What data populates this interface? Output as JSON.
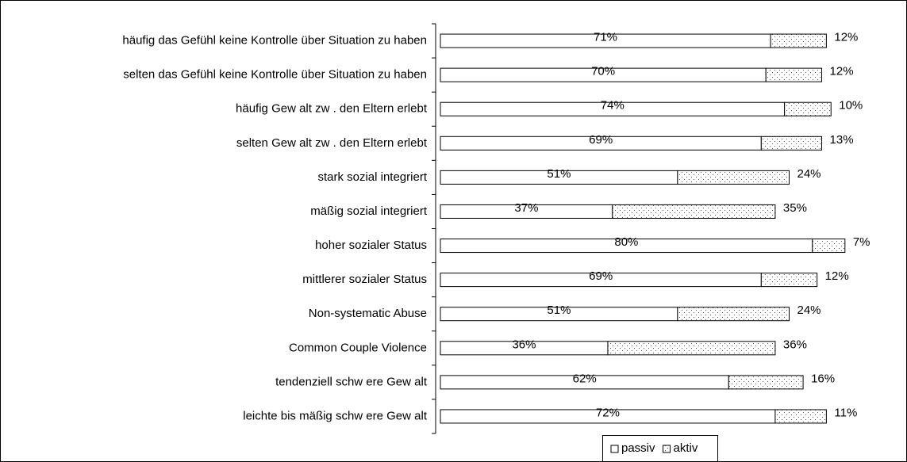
{
  "chart_data": {
    "type": "stacked-bar-horizontal",
    "categories": [
      "häufig das Gefühl keine Kontrolle über Situation zu haben",
      "selten das Gefühl keine Kontrolle über Situation zu haben",
      "häufig Gew alt zw . den Eltern erlebt",
      "selten Gew alt zw . den Eltern erlebt",
      "stark sozial integriert",
      "mäßig sozial integriert",
      "hoher sozialer Status",
      "mittlerer sozialer Status",
      "Non-systematic Abuse",
      "Common Couple Violence",
      "tendenziell schw ere Gew alt",
      "leichte bis mäßig schw ere Gew alt"
    ],
    "series": [
      {
        "name": "passiv",
        "color": "#ffffff",
        "pattern": "none",
        "values": [
          71,
          70,
          74,
          69,
          51,
          37,
          80,
          69,
          51,
          36,
          62,
          72
        ],
        "value_labels": [
          "71%",
          "70%",
          "74%",
          "69%",
          "51%",
          "37%",
          "80%",
          "69%",
          "51%",
          "36%",
          "62%",
          "72%"
        ]
      },
      {
        "name": "aktiv",
        "color": "#ffffff",
        "pattern": "dots",
        "values": [
          12,
          12,
          10,
          13,
          24,
          35,
          7,
          12,
          24,
          36,
          16,
          11
        ],
        "value_labels": [
          "12%",
          "12%",
          "10%",
          "13%",
          "24%",
          "35%",
          "7%",
          "12%",
          "24%",
          "36%",
          "16%",
          "11%"
        ]
      }
    ],
    "xlim": [
      0,
      100
    ],
    "legend": "bottom"
  }
}
